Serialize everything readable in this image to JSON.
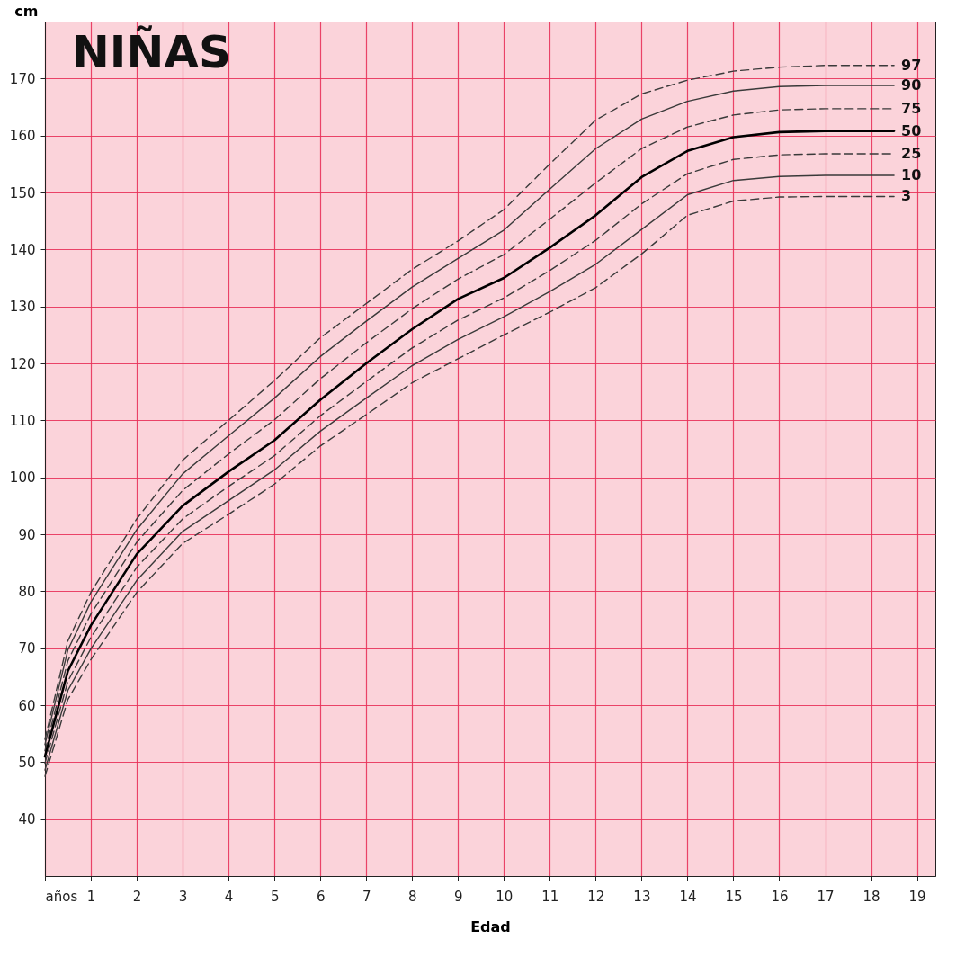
{
  "chart_data": {
    "type": "line",
    "title": "NIÑAS",
    "xlabel": "Edad",
    "ylabel": "cm",
    "x": [
      0,
      0.5,
      1,
      2,
      3,
      4,
      5,
      6,
      7,
      8,
      9,
      10,
      11,
      12,
      13,
      14,
      15,
      16,
      17,
      18,
      18.5
    ],
    "xlim": [
      0,
      19.4
    ],
    "ylim": [
      30,
      180
    ],
    "xticks": [
      {
        "value": 0,
        "label": "años"
      },
      1,
      2,
      3,
      4,
      5,
      6,
      7,
      8,
      9,
      10,
      11,
      12,
      13,
      14,
      15,
      16,
      17,
      18,
      19
    ],
    "yticks": [
      40,
      50,
      60,
      70,
      80,
      90,
      100,
      110,
      120,
      130,
      140,
      150,
      160,
      170
    ],
    "grid": true,
    "marker": "none",
    "series": [
      {
        "name": "97",
        "color": "#3a3a3a",
        "line_style": "dashed",
        "values": [
          54,
          71.3,
          79.8,
          92.7,
          103,
          110,
          117,
          124.5,
          130.5,
          136.5,
          141.5,
          147,
          155,
          162.7,
          167.3,
          169.7,
          171.3,
          172,
          172.3,
          172.3,
          172.3
        ]
      },
      {
        "name": "90",
        "color": "#3a3a3a",
        "line_style": "solid",
        "values": [
          53.1,
          69.7,
          78.1,
          90.8,
          100.6,
          107.3,
          113.9,
          121.2,
          127.4,
          133.4,
          138.4,
          143.4,
          150.6,
          157.7,
          162.9,
          166,
          167.8,
          168.6,
          168.8,
          168.8,
          168.8
        ]
      },
      {
        "name": "75",
        "color": "#3a3a3a",
        "line_style": "dashed",
        "values": [
          52,
          67.8,
          76,
          88.6,
          97.7,
          104.1,
          110.1,
          117.3,
          123.6,
          129.6,
          134.8,
          139.1,
          145.3,
          151.7,
          157.7,
          161.5,
          163.6,
          164.5,
          164.7,
          164.7,
          164.7
        ]
      },
      {
        "name": "50",
        "color": "#000000",
        "line_style": "solid",
        "values": [
          51,
          66,
          74,
          86.5,
          95,
          101,
          106.5,
          113.6,
          120,
          126,
          131.3,
          135,
          140.3,
          146,
          152.7,
          157.3,
          159.7,
          160.6,
          160.8,
          160.8,
          160.8
        ]
      },
      {
        "name": "25",
        "color": "#3a3a3a",
        "line_style": "dashed",
        "values": [
          49.8,
          64.2,
          71.9,
          84.2,
          92.7,
          98.4,
          103.8,
          110.8,
          116.8,
          122.7,
          127.6,
          131.5,
          136.3,
          141.6,
          148,
          153.3,
          155.8,
          156.6,
          156.8,
          156.8,
          156.8
        ]
      },
      {
        "name": "10",
        "color": "#3a3a3a",
        "line_style": "solid",
        "values": [
          48.6,
          62.6,
          69.9,
          81.9,
          90.5,
          95.9,
          101.3,
          108.1,
          113.9,
          119.6,
          124.2,
          128.2,
          132.6,
          137.4,
          143.5,
          149.6,
          152.1,
          152.8,
          153,
          153,
          153
        ]
      },
      {
        "name": "3",
        "color": "#3a3a3a",
        "line_style": "dashed",
        "values": [
          47.5,
          61,
          68,
          79.8,
          88.4,
          93.5,
          98.8,
          105.5,
          111,
          116.6,
          120.8,
          125,
          129,
          133.3,
          139.2,
          146,
          148.5,
          149.2,
          149.3,
          149.3,
          149.3
        ]
      }
    ]
  }
}
